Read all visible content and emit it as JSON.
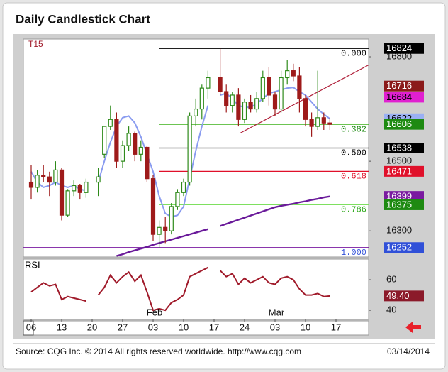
{
  "chart_data": [
    {
      "type": "candlestick",
      "title": "Daily Candlestick Chart",
      "symbol": "T15",
      "categories": [
        "06",
        null,
        null,
        null,
        null,
        "13",
        null,
        null,
        null,
        null,
        "20",
        null,
        null,
        null,
        null,
        "27",
        null,
        null,
        null,
        null,
        "03",
        null,
        null,
        null,
        null,
        "10",
        null,
        null,
        null,
        null,
        "17",
        null,
        null,
        null,
        null,
        "24",
        null,
        null,
        null,
        null,
        "03",
        null,
        null,
        null,
        null,
        "10",
        null,
        null,
        null,
        null,
        "17"
      ],
      "months": [
        "Feb",
        "Mar"
      ],
      "open": [
        16440,
        16425,
        16460,
        16455,
        16440,
        16475,
        16345,
        16415,
        16430,
        16410,
        null,
        16440,
        16520,
        16600,
        16620,
        16500,
        16545,
        16580,
        16520,
        16540,
        16450,
        16290,
        16310,
        16300,
        16370,
        16410,
        16440,
        16630,
        16650,
        16710,
        null,
        16740,
        16700,
        16660,
        16690,
        16620,
        16670,
        16650,
        16680,
        16740,
        16690,
        16650,
        16740,
        16760,
        16745,
        16680,
        16620,
        16600,
        16625,
        16610,
        null
      ],
      "high": [
        16490,
        16475,
        16490,
        16470,
        16500,
        16480,
        16420,
        16445,
        16435,
        16450,
        null,
        16480,
        16600,
        16660,
        16640,
        16560,
        16600,
        16585,
        16560,
        16545,
        16460,
        16330,
        16340,
        16380,
        16420,
        16450,
        16640,
        16680,
        16720,
        16760,
        null,
        16824,
        16720,
        16700,
        16710,
        16680,
        16690,
        16700,
        16760,
        16770,
        16700,
        16760,
        16790,
        16780,
        16770,
        16690,
        16640,
        16760,
        16640,
        16625,
        null
      ],
      "low": [
        16390,
        16410,
        16440,
        16400,
        16430,
        16330,
        16340,
        16400,
        16390,
        16395,
        null,
        16400,
        16510,
        16590,
        16480,
        16480,
        16530,
        16500,
        16500,
        16440,
        16270,
        16250,
        16265,
        16290,
        16360,
        16400,
        16430,
        16600,
        16620,
        16680,
        null,
        16690,
        16640,
        16640,
        16600,
        16610,
        16640,
        16640,
        16670,
        16660,
        16630,
        16640,
        16720,
        16730,
        16640,
        16600,
        16570,
        16590,
        16590,
        16590,
        null
      ],
      "close": [
        16425,
        16460,
        16455,
        16440,
        16475,
        16345,
        16415,
        16430,
        16410,
        16440,
        null,
        16455,
        16600,
        16620,
        16500,
        16545,
        16580,
        16520,
        16540,
        16450,
        16290,
        16310,
        16300,
        16370,
        16410,
        16440,
        16630,
        16650,
        16710,
        16740,
        null,
        16700,
        16660,
        16690,
        16620,
        16670,
        16650,
        16680,
        16740,
        16690,
        16650,
        16740,
        16760,
        16745,
        16680,
        16620,
        16600,
        16625,
        16610,
        16606,
        null
      ],
      "up_color": "#2e8a1a",
      "down_color": "#9e1a1a",
      "overlays": [
        {
          "color": "#8a9cf0",
          "box_color": "#9ab0f4",
          "box_text": "#000000",
          "values": [
            16470,
            16440,
            16425,
            16430,
            16440,
            16430,
            16425,
            16430,
            16420,
            16415,
            null,
            16440,
            16500,
            16555,
            16600,
            16625,
            16630,
            16610,
            16570,
            16520,
            16470,
            16400,
            16350,
            16340,
            16345,
            16370,
            16450,
            16530,
            16600,
            16660,
            null,
            16690,
            16695,
            16680,
            16660,
            16655,
            16655,
            16665,
            16680,
            16695,
            16700,
            16705,
            16710,
            16712,
            16700,
            16690,
            16670,
            16650,
            16635,
            16622,
            null
          ]
        },
        {
          "color": "#6a1a9a",
          "box_color": "#7a1aa0",
          "box_text": "#ffffff",
          "values": [
            null,
            null,
            null,
            null,
            null,
            null,
            null,
            null,
            null,
            null,
            null,
            null,
            null,
            null,
            16228,
            16233,
            16239,
            16244,
            16249,
            16254,
            16260,
            16265,
            16270,
            16275,
            16280,
            16285,
            16290,
            16295,
            16300,
            16305,
            null,
            16314,
            16320,
            16326,
            16332,
            16338,
            16344,
            16350,
            16356,
            16362,
            16368,
            16372,
            16375,
            16378,
            16382,
            16385,
            16389,
            16392,
            16396,
            16399,
            null
          ]
        }
      ],
      "fib_levels": [
        {
          "label": "0.000",
          "value": 16824,
          "color": "#000000",
          "label_color": "#000000",
          "box_color": "#000000",
          "box_text": "#ffffff",
          "from": 21
        },
        {
          "label": "0.382",
          "value": 16606,
          "color": "#3cb019",
          "label_color": "#1e8a12",
          "box_color": "#1e8a12",
          "box_text": "#ffffff",
          "from": 21
        },
        {
          "label": "0.500",
          "value": 16538,
          "color": "#000000",
          "label_color": "#000000",
          "box_color": "#000000",
          "box_text": "#ffffff",
          "from": 21
        },
        {
          "label": "0.618",
          "value": 16471,
          "color": "#e0102a",
          "label_color": "#e0102a",
          "box_color": "#e0102a",
          "box_text": "#ffffff",
          "from": 21
        },
        {
          "label": "0.786",
          "value": 16375,
          "color": "#7ee060",
          "label_color": "#2ea81a",
          "box_color": "#1e8a12",
          "box_text": "#ffffff",
          "from": 21
        },
        {
          "label": "1.000",
          "value": 16252,
          "color": "#7a1aa0",
          "label_color": "#3050d8",
          "box_color": "#3050d8",
          "box_text": "#ffffff",
          "from": 0
        }
      ],
      "markers": [
        {
          "value": 16716,
          "color": "#8b1a1a",
          "text_color": "#ffffff"
        },
        {
          "value": 16684,
          "color": "#e020d0",
          "text_color": "#000000"
        }
      ],
      "trendline": {
        "color": "#b0203a",
        "x": [
          34.2,
          55.3
        ],
        "y": [
          16580,
          16776
        ]
      },
      "ylim": [
        16225,
        16851
      ],
      "yticks": [
        16300,
        16500,
        16800
      ]
    },
    {
      "type": "line",
      "indicator": "RSI",
      "color": "#a01a2a",
      "box_color": "#8b1a2a",
      "box_text": "#ffffff",
      "values": [
        52,
        55,
        58,
        56,
        57,
        47,
        49,
        48,
        47,
        46,
        null,
        50,
        55,
        63,
        58,
        62,
        65,
        59,
        63,
        52,
        40,
        41,
        40,
        45,
        47,
        50,
        62,
        64,
        66,
        68,
        null,
        66,
        62,
        64,
        57,
        61,
        58,
        60,
        62,
        58,
        57,
        61,
        62,
        60,
        54,
        50,
        50,
        51,
        49,
        49.4,
        null
      ],
      "value_labels": [
        null,
        null,
        null,
        null,
        null,
        null,
        null,
        null,
        null,
        null,
        null,
        null,
        null,
        null,
        null,
        null,
        null,
        null,
        null,
        null,
        null,
        null,
        null,
        null,
        null,
        null,
        null,
        null,
        null,
        null,
        null,
        null,
        null,
        null,
        null,
        null,
        null,
        null,
        null,
        null,
        null,
        null,
        null,
        null,
        null,
        null,
        null,
        null,
        null,
        "49.40",
        null
      ],
      "ylim": [
        34,
        73.5
      ],
      "yticks": [
        40,
        60
      ]
    }
  ],
  "footer": {
    "source": "Source: CQG Inc. © 2014 All rights reserved worldwide. http://www.cqg.com",
    "date": "03/14/2014"
  }
}
